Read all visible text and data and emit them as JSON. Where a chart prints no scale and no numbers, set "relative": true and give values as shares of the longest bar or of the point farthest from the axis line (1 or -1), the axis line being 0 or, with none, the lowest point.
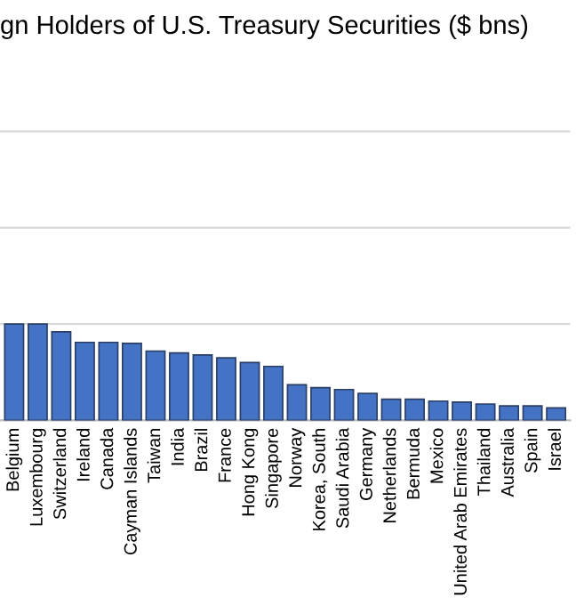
{
  "chart_data": {
    "type": "bar",
    "title": "gn Holders of U.S. Treasury Securities ($ bns)",
    "categories": [
      "Belgium",
      "Luxembourg",
      "Switzerland",
      "Ireland",
      "Canada",
      "Cayman Islands",
      "Taiwan",
      "India",
      "Brazil",
      "France",
      "Hong Kong",
      "Singapore",
      "Norway",
      "Korea, South",
      "Saudi Arabia",
      "Germany",
      "Netherlands",
      "Bermuda",
      "Mexico",
      "United Arab Emirates",
      "Thailand",
      "Australia",
      "Spain",
      "Israel"
    ],
    "values": [
      1,
      1,
      0.92,
      0.81,
      0.81,
      0.8,
      0.72,
      0.7,
      0.68,
      0.65,
      0.6,
      0.56,
      0.37,
      0.34,
      0.32,
      0.28,
      0.22,
      0.22,
      0.2,
      0.19,
      0.17,
      0.15,
      0.15,
      0.13
    ],
    "color": "#4472c4",
    "relative": true,
    "grid": "y"
  }
}
